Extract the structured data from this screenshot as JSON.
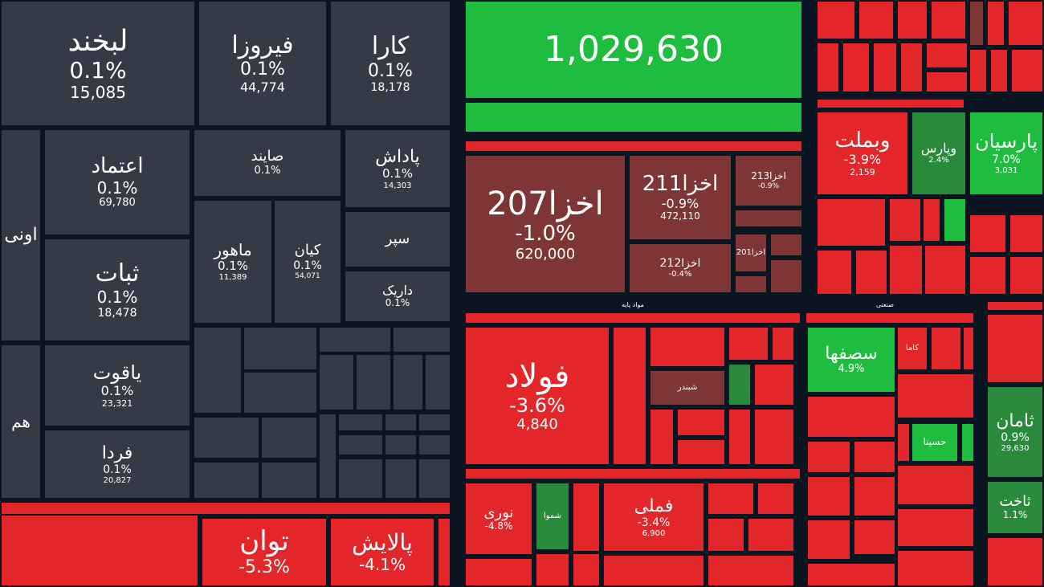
{
  "colors": {
    "dark": "#353b46",
    "red": "#e3262a",
    "darkred": "#7d3535",
    "green": "#1fbd3f",
    "darkgreen": "#2a8a3c",
    "header_red": "#e3262a"
  },
  "chart_data": {
    "type": "heatmap",
    "tiles": [
      {
        "name": "لبخند",
        "percent": "0.1%",
        "value": "15,085",
        "color": "dark"
      },
      {
        "name": "فیروزا",
        "percent": "0.1%",
        "value": "44,774",
        "color": "dark"
      },
      {
        "name": "کارا",
        "percent": "0.1%",
        "value": "18,178",
        "color": "dark"
      },
      {
        "name": "",
        "percent": "",
        "value": "1,029,630",
        "color": "green"
      },
      {
        "name": "اعتماد",
        "percent": "0.1%",
        "value": "69,780",
        "color": "dark"
      },
      {
        "name": "صایند",
        "percent": "0.1%",
        "value": "",
        "color": "dark"
      },
      {
        "name": "پاداش",
        "percent": "0.1%",
        "value": "14,303",
        "color": "dark"
      },
      {
        "name": "اونی",
        "percent": "",
        "value": "",
        "color": "dark"
      },
      {
        "name": "ثبات",
        "percent": "0.1%",
        "value": "18,478",
        "color": "dark"
      },
      {
        "name": "ماهور",
        "percent": "0.1%",
        "value": "11,389",
        "color": "dark"
      },
      {
        "name": "کیان",
        "percent": "0.1%",
        "value": "54,071",
        "color": "dark"
      },
      {
        "name": "سپر",
        "percent": "",
        "value": "",
        "color": "dark"
      },
      {
        "name": "داریک",
        "percent": "0.1%",
        "value": "",
        "color": "dark"
      },
      {
        "name": "یاقوت",
        "percent": "0.1%",
        "value": "23,321",
        "color": "dark"
      },
      {
        "name": "فردا",
        "percent": "0.1%",
        "value": "20,827",
        "color": "dark"
      },
      {
        "name": "هم",
        "percent": "",
        "value": "",
        "color": "dark"
      },
      {
        "name": "اخزا207",
        "percent": "-1.0%",
        "value": "620,000",
        "color": "darkred"
      },
      {
        "name": "اخزا211",
        "percent": "-0.9%",
        "value": "472,110",
        "color": "darkred"
      },
      {
        "name": "اخزا213",
        "percent": "-0.9%",
        "value": "",
        "color": "darkred"
      },
      {
        "name": "اخزا212",
        "percent": "-0.4%",
        "value": "",
        "color": "darkred"
      },
      {
        "name": "اخزا201",
        "percent": "",
        "value": "",
        "color": "darkred"
      },
      {
        "name": "وبملت",
        "percent": "-3.9%",
        "value": "2,159",
        "color": "red"
      },
      {
        "name": "وپارس",
        "percent": "2.4%",
        "value": "",
        "color": "darkgreen"
      },
      {
        "name": "پارسیان",
        "percent": "7.0%",
        "value": "3,031",
        "color": "green"
      },
      {
        "name": "فولاد",
        "percent": "-3.6%",
        "value": "4,840",
        "color": "red"
      },
      {
        "name": "سصفها",
        "percent": "4.9%",
        "value": "",
        "color": "green"
      },
      {
        "name": "ثامان",
        "percent": "0.9%",
        "value": "29,630",
        "color": "darkgreen"
      },
      {
        "name": "ثاخت",
        "percent": "1.1%",
        "value": "",
        "color": "darkgreen"
      },
      {
        "name": "نوری",
        "percent": "-4.8%",
        "value": "",
        "color": "red"
      },
      {
        "name": "فملی",
        "percent": "-3.4%",
        "value": "6,900",
        "color": "red"
      },
      {
        "name": "توان",
        "percent": "-5.3%",
        "value": "",
        "color": "red"
      },
      {
        "name": "پالایش",
        "percent": "-4.1%",
        "value": "",
        "color": "red"
      },
      {
        "name": "شبندر",
        "percent": "",
        "value": "",
        "color": "darkred"
      },
      {
        "name": "حسینا",
        "percent": "",
        "value": "",
        "color": "green"
      },
      {
        "name": "شموا",
        "percent": "",
        "value": "",
        "color": "darkgreen"
      },
      {
        "name": "کاما",
        "percent": "",
        "value": "",
        "color": "red"
      }
    ],
    "group_labels": [
      "مواد پایه",
      "صنعتی"
    ]
  }
}
